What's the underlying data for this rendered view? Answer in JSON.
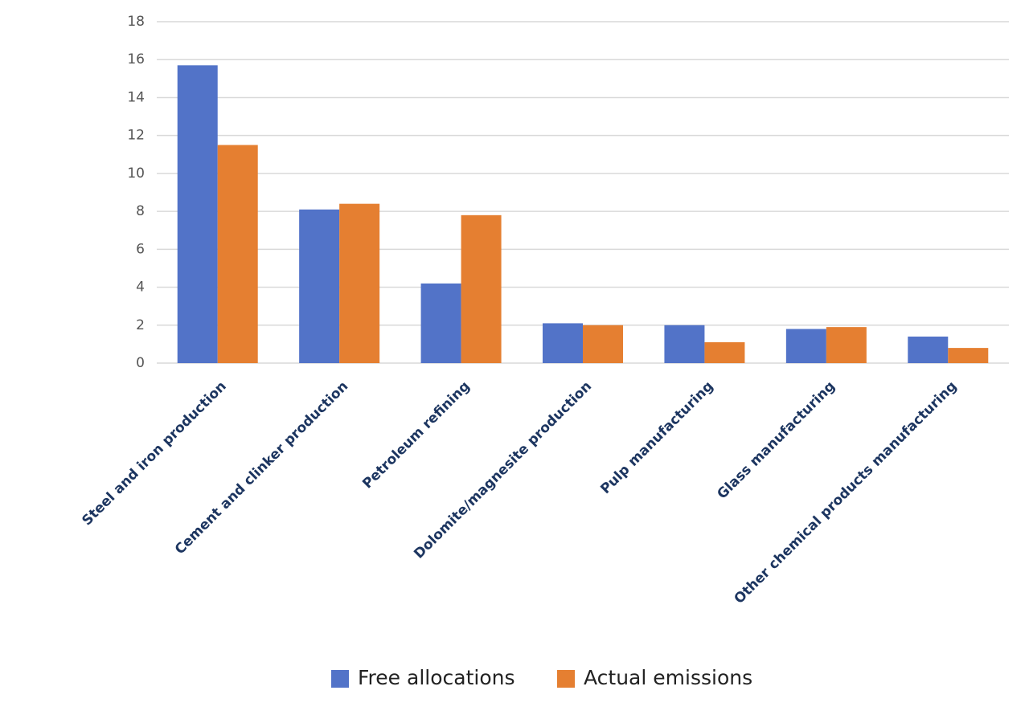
{
  "chart_data": {
    "type": "bar",
    "categories": [
      "Steel and iron production",
      "Cement and clinker production",
      "Petroleum refining",
      "Dolomite/magnesite production",
      "Pulp manufacturing",
      "Glass manufacturing",
      "Other chemical products manufacturing"
    ],
    "series": [
      {
        "name": "Free allocations",
        "color": "#5273c8",
        "values": [
          15.7,
          8.1,
          4.2,
          2.1,
          2.0,
          1.8,
          1.4
        ]
      },
      {
        "name": "Actual emissions",
        "color": "#e57f31",
        "values": [
          11.5,
          8.4,
          7.8,
          2.0,
          1.1,
          1.9,
          0.8
        ]
      }
    ],
    "ylim": [
      0,
      18
    ],
    "yticks": [
      0,
      2,
      4,
      6,
      8,
      10,
      12,
      14,
      16,
      18
    ],
    "grid": true,
    "legend": "bottom"
  }
}
